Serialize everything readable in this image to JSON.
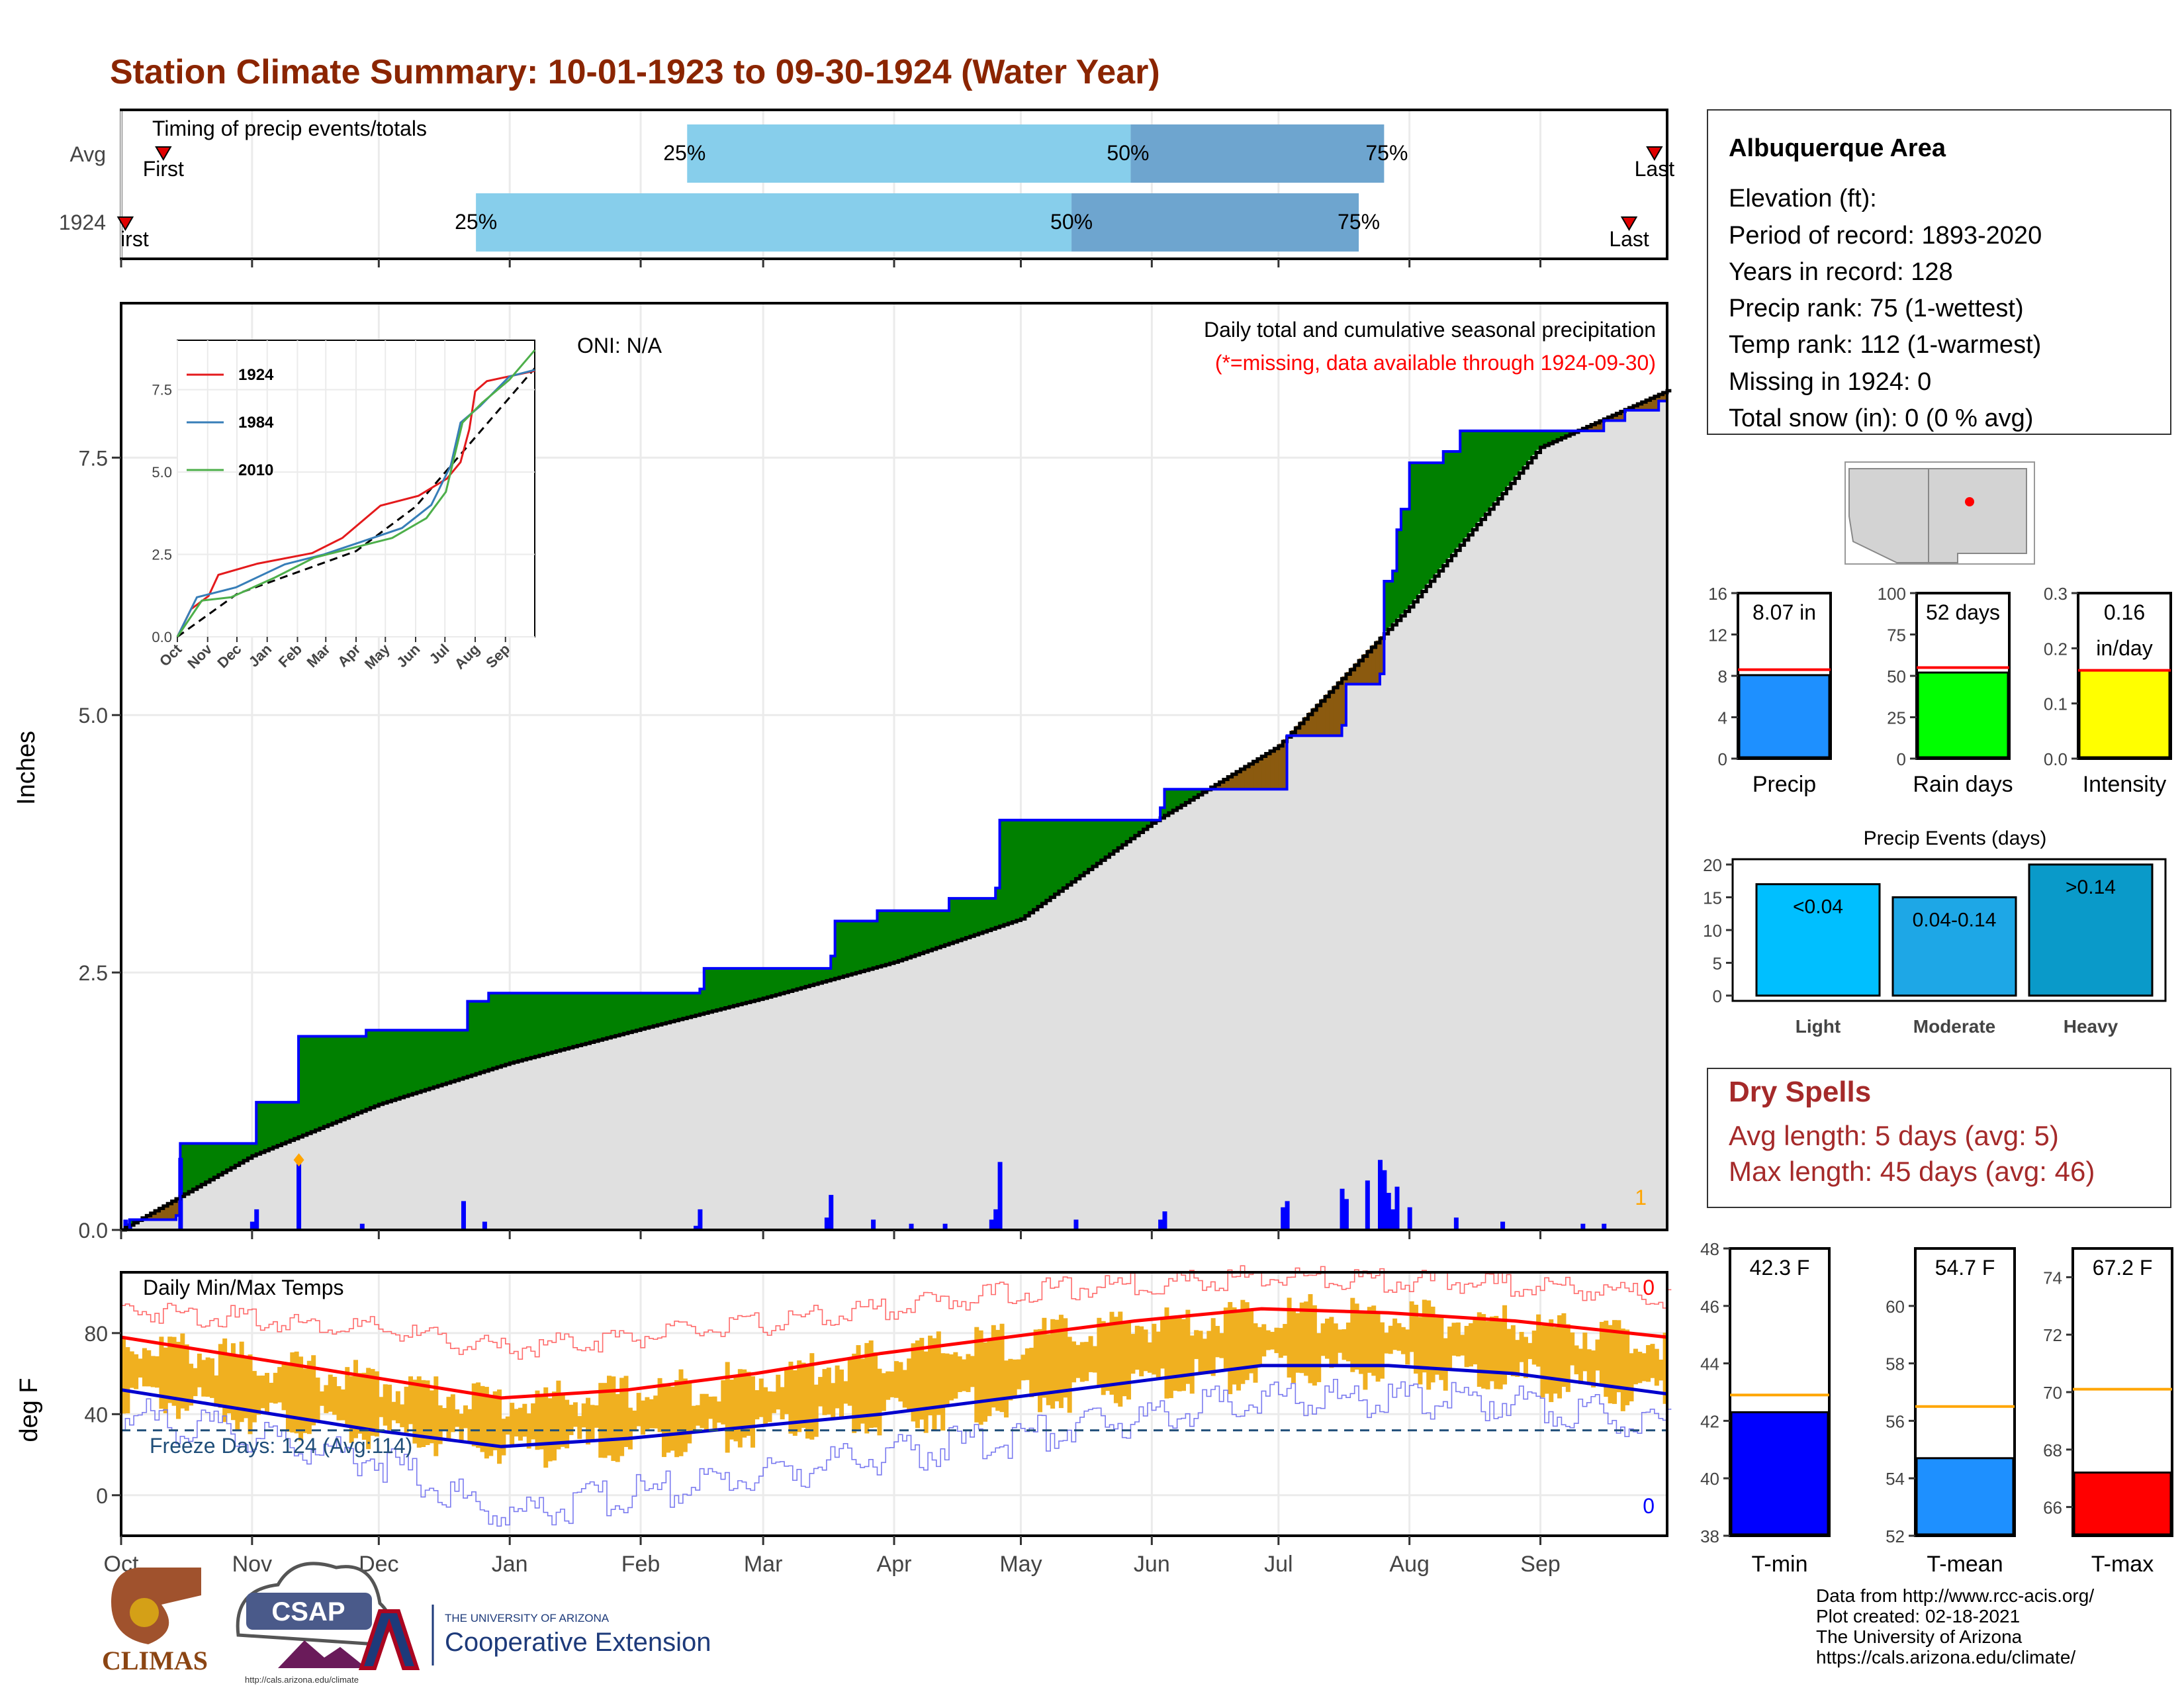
{
  "title": "Station Climate Summary: 10-01-1923 to 09-30-1924 (Water Year)",
  "colors": {
    "title": "#8b2500",
    "p25_50": "#87ceeb",
    "p50_75": "#6ea5cf",
    "cumulative_avg_fill": "#e0e0e0",
    "above_avg": "#008000",
    "below_avg": "#8b5a0f",
    "daily_bar": "#0000ff",
    "temp_bar": "#f0b020",
    "tmax_line": "#ff0000",
    "tmin_line": "#0000cd",
    "freeze_line": "#1f4e79",
    "dry_spells": "#a52a2a"
  },
  "timing": {
    "label": "Timing of precip events/totals",
    "rows": [
      "Avg",
      "1924"
    ],
    "first_label": "First",
    "first_label_clipped": "irst",
    "last_label": "Last",
    "avg": {
      "first_day": 10,
      "p25_day": 134,
      "p50_day": 239,
      "p75_day": 299,
      "last_day": 363
    },
    "year": {
      "first_day": 1,
      "p25_day": 84,
      "p50_day": 225,
      "p75_day": 293,
      "last_day": 357
    },
    "pct_labels": [
      "25%",
      "50%",
      "75%"
    ]
  },
  "chart_data": [
    {
      "type": "area",
      "id": "cumulative-precip",
      "ylabel": "Inches",
      "ylim": [
        0,
        9.0
      ],
      "yticks": [
        "0.0",
        "2.5",
        "5.0",
        "7.5"
      ],
      "yticks_values": [
        0,
        2.5,
        5.0,
        7.5
      ],
      "months": [
        "Oct",
        "Nov",
        "Dec",
        "Jan",
        "Feb",
        "Mar",
        "Apr",
        "May",
        "Jun",
        "Jul",
        "Aug",
        "Sep"
      ],
      "month_start_days": [
        0,
        31,
        61,
        92,
        123,
        152,
        183,
        213,
        244,
        274,
        305,
        336
      ],
      "days_in_year": 366,
      "subtitle": "Daily total and cumulative seasonal precipitation",
      "missing_note": "(*=missing, data available through 1924-09-30)",
      "oni": "ONI: N/A",
      "corner_count": "1",
      "avg_cumulative": [
        [
          0,
          0
        ],
        [
          31,
          0.72
        ],
        [
          61,
          1.22
        ],
        [
          92,
          1.62
        ],
        [
          123,
          1.95
        ],
        [
          152,
          2.25
        ],
        [
          183,
          2.6
        ],
        [
          213,
          3.02
        ],
        [
          244,
          3.95
        ],
        [
          274,
          4.7
        ],
        [
          305,
          6.05
        ],
        [
          336,
          7.6
        ],
        [
          366,
          8.15
        ]
      ],
      "year_cumulative": [
        [
          0,
          0
        ],
        [
          2,
          0.1
        ],
        [
          13,
          0.14
        ],
        [
          14,
          0.84
        ],
        [
          31,
          0.84
        ],
        [
          32,
          1.04
        ],
        [
          32,
          1.24
        ],
        [
          41,
          1.24
        ],
        [
          42,
          1.88
        ],
        [
          57,
          1.88
        ],
        [
          58,
          1.94
        ],
        [
          81,
          1.94
        ],
        [
          82,
          2.22
        ],
        [
          86,
          2.22
        ],
        [
          87,
          2.3
        ],
        [
          136,
          2.3
        ],
        [
          137,
          2.34
        ],
        [
          138,
          2.54
        ],
        [
          153,
          2.54
        ],
        [
          168,
          2.66
        ],
        [
          169,
          3.0
        ],
        [
          178,
          3.0
        ],
        [
          179,
          3.1
        ],
        [
          188,
          3.1
        ],
        [
          196,
          3.22
        ],
        [
          206,
          3.22
        ],
        [
          207,
          3.32
        ],
        [
          208,
          3.98
        ],
        [
          226,
          3.98
        ],
        [
          246,
          4.1
        ],
        [
          247,
          4.28
        ],
        [
          276,
          4.5
        ],
        [
          276,
          4.8
        ],
        [
          289,
          4.9
        ],
        [
          290,
          5.3
        ],
        [
          298,
          5.4
        ],
        [
          299,
          6.3
        ],
        [
          301,
          6.4
        ],
        [
          302,
          6.8
        ],
        [
          303,
          7.0
        ],
        [
          305,
          7.45
        ],
        [
          313,
          7.56
        ],
        [
          316,
          7.56
        ],
        [
          317,
          7.76
        ],
        [
          350,
          7.76
        ],
        [
          351,
          7.86
        ],
        [
          356,
          7.96
        ],
        [
          364,
          8.05
        ],
        [
          366,
          8.07
        ]
      ],
      "daily_precip": [
        [
          1,
          0.1
        ],
        [
          2,
          0.04
        ],
        [
          14,
          0.7
        ],
        [
          31,
          0.08
        ],
        [
          32,
          0.2
        ],
        [
          42,
          0.64
        ],
        [
          57,
          0.06
        ],
        [
          81,
          0.28
        ],
        [
          86,
          0.08
        ],
        [
          136,
          0.04
        ],
        [
          137,
          0.2
        ],
        [
          167,
          0.12
        ],
        [
          168,
          0.34
        ],
        [
          178,
          0.1
        ],
        [
          187,
          0.06
        ],
        [
          195,
          0.06
        ],
        [
          206,
          0.1
        ],
        [
          207,
          0.2
        ],
        [
          208,
          0.66
        ],
        [
          226,
          0.1
        ],
        [
          246,
          0.1
        ],
        [
          247,
          0.18
        ],
        [
          275,
          0.22
        ],
        [
          276,
          0.28
        ],
        [
          289,
          0.4
        ],
        [
          290,
          0.3
        ],
        [
          295,
          0.48
        ],
        [
          298,
          0.68
        ],
        [
          299,
          0.58
        ],
        [
          300,
          0.36
        ],
        [
          301,
          0.2
        ],
        [
          302,
          0.42
        ],
        [
          305,
          0.22
        ],
        [
          316,
          0.12
        ],
        [
          327,
          0.08
        ],
        [
          346,
          0.06
        ],
        [
          351,
          0.06
        ]
      ],
      "missing_marker_day": 42,
      "missing_marker_value": 0.68,
      "inset": {
        "type": "line",
        "ylim": [
          0,
          9.0
        ],
        "yticks": [
          "0.0",
          "2.5",
          "5.0",
          "7.5"
        ],
        "yticks_values": [
          0,
          2.5,
          5.0,
          7.5
        ],
        "months": [
          "Oct",
          "Nov",
          "Dec",
          "Jan",
          "Feb",
          "Mar",
          "Apr",
          "May",
          "Jun",
          "Jul",
          "Aug",
          "Sep"
        ],
        "series": [
          {
            "name": "1924",
            "color": "#e41a1c",
            "values": [
              [
                0,
                0
              ],
              [
                14,
                0.84
              ],
              [
                32,
                1.24
              ],
              [
                42,
                1.88
              ],
              [
                82,
                2.22
              ],
              [
                138,
                2.54
              ],
              [
                169,
                3.0
              ],
              [
                208,
                3.98
              ],
              [
                247,
                4.28
              ],
              [
                276,
                4.8
              ],
              [
                290,
                5.3
              ],
              [
                299,
                6.3
              ],
              [
                305,
                7.45
              ],
              [
                317,
                7.76
              ],
              [
                366,
                8.07
              ]
            ]
          },
          {
            "name": "1984",
            "color": "#377eb8",
            "values": [
              [
                0,
                0
              ],
              [
                20,
                1.2
              ],
              [
                60,
                1.5
              ],
              [
                110,
                2.2
              ],
              [
                150,
                2.5
              ],
              [
                190,
                2.9
              ],
              [
                230,
                3.3
              ],
              [
                260,
                4.0
              ],
              [
                280,
                5.2
              ],
              [
                290,
                6.5
              ],
              [
                310,
                7.0
              ],
              [
                340,
                7.9
              ],
              [
                366,
                8.1
              ]
            ]
          },
          {
            "name": "2010",
            "color": "#4daf4a",
            "values": [
              [
                0,
                0
              ],
              [
                25,
                1.1
              ],
              [
                55,
                1.2
              ],
              [
                100,
                1.8
              ],
              [
                140,
                2.4
              ],
              [
                180,
                2.7
              ],
              [
                220,
                3.0
              ],
              [
                255,
                3.6
              ],
              [
                275,
                4.4
              ],
              [
                292,
                6.5
              ],
              [
                312,
                7.1
              ],
              [
                340,
                7.8
              ],
              [
                366,
                8.7
              ]
            ]
          }
        ],
        "avg_dashed": [
          [
            0,
            0
          ],
          [
            61,
            1.3
          ],
          [
            122,
            1.95
          ],
          [
            183,
            2.6
          ],
          [
            244,
            3.95
          ],
          [
            305,
            6.05
          ],
          [
            366,
            8.15
          ]
        ]
      }
    },
    {
      "type": "line",
      "id": "daily-temps",
      "label": "Daily Min/Max Temps",
      "ylabel": "deg F",
      "ylim": [
        -20,
        110
      ],
      "yticks": [
        "0",
        "40",
        "80"
      ],
      "yticks_values": [
        0,
        40,
        80
      ],
      "months": [
        "Oct",
        "Nov",
        "Dec",
        "Jan",
        "Feb",
        "Mar",
        "Apr",
        "May",
        "Jun",
        "Jul",
        "Aug",
        "Sep"
      ],
      "freeze_label": "Freeze Days: 124 (Avg:114)",
      "freeze_value": 32,
      "count_top": "0",
      "count_bottom": "0",
      "normal_max": [
        [
          0,
          78
        ],
        [
          30,
          68
        ],
        [
          60,
          58
        ],
        [
          90,
          48
        ],
        [
          120,
          52
        ],
        [
          150,
          60
        ],
        [
          180,
          70
        ],
        [
          210,
          78
        ],
        [
          240,
          86
        ],
        [
          270,
          92
        ],
        [
          300,
          90
        ],
        [
          330,
          86
        ],
        [
          366,
          78
        ]
      ],
      "normal_min": [
        [
          0,
          52
        ],
        [
          30,
          42
        ],
        [
          60,
          32
        ],
        [
          90,
          24
        ],
        [
          120,
          28
        ],
        [
          150,
          34
        ],
        [
          180,
          40
        ],
        [
          210,
          48
        ],
        [
          240,
          56
        ],
        [
          270,
          64
        ],
        [
          300,
          64
        ],
        [
          330,
          60
        ],
        [
          366,
          50
        ]
      ],
      "record_max": [
        [
          0,
          92
        ],
        [
          60,
          82
        ],
        [
          90,
          72
        ],
        [
          150,
          84
        ],
        [
          210,
          100
        ],
        [
          270,
          108
        ],
        [
          330,
          104
        ],
        [
          366,
          98
        ]
      ],
      "record_min": [
        [
          0,
          40
        ],
        [
          60,
          18
        ],
        [
          90,
          -10
        ],
        [
          150,
          10
        ],
        [
          210,
          28
        ],
        [
          270,
          48
        ],
        [
          330,
          46
        ],
        [
          366,
          36
        ]
      ]
    },
    {
      "type": "bar",
      "id": "precip-summary",
      "categories": [
        "Precip",
        "Rain days",
        "Intensity"
      ],
      "values": [
        8.07,
        52,
        0.16
      ],
      "averages": [
        8.6,
        55,
        0.16
      ],
      "value_labels": [
        "8.07 in",
        "52 days",
        "0.16"
      ],
      "value_label_extra": [
        "",
        "",
        "in/day"
      ],
      "ylims": [
        [
          0,
          16
        ],
        [
          0,
          100
        ],
        [
          0,
          0.3
        ]
      ],
      "yticks": [
        [
          "0",
          "4",
          "8",
          "12",
          "16"
        ],
        [
          "0",
          "25",
          "50",
          "75",
          "100"
        ],
        [
          "0.0",
          "0.1",
          "0.2",
          "0.3"
        ]
      ],
      "bar_colors": [
        "#1e90ff",
        "#00ff00",
        "#ffff00"
      ]
    },
    {
      "type": "bar",
      "id": "precip-events",
      "title": "Precip Events (days)",
      "categories": [
        "Light",
        "Moderate",
        "Heavy"
      ],
      "values": [
        17,
        15,
        20
      ],
      "value_labels": [
        "<0.04",
        "0.04-0.14",
        ">0.14"
      ],
      "ylim": [
        0,
        20
      ],
      "yticks": [
        "0",
        "5",
        "10",
        "15",
        "20"
      ],
      "bar_colors": [
        "#00bfff",
        "#1ea7e6",
        "#0a9ac9"
      ]
    },
    {
      "type": "bar",
      "id": "temp-summary",
      "categories": [
        "T-min",
        "T-mean",
        "T-max"
      ],
      "values": [
        42.3,
        54.7,
        67.2
      ],
      "averages": [
        42.9,
        56.5,
        70.1
      ],
      "value_labels": [
        "42.3 F",
        "54.7 F",
        "67.2 F"
      ],
      "ylims": [
        [
          38,
          48
        ],
        [
          52,
          62
        ],
        [
          65,
          75
        ]
      ],
      "yticks": [
        [
          "38",
          "40",
          "42",
          "44",
          "46",
          "48"
        ],
        [
          "52",
          "54",
          "56",
          "58",
          "60"
        ],
        [
          "66",
          "68",
          "70",
          "72",
          "74"
        ]
      ],
      "bar_colors": [
        "#0000ff",
        "#1e90ff",
        "#ff0000"
      ]
    }
  ],
  "station": {
    "name": "Albuquerque Area",
    "lines": [
      "Elevation (ft):",
      "Period of record: 1893-2020",
      "Years in record: 128",
      "Precip rank: 75 (1-wettest)",
      "Temp rank: 112 (1-warmest)",
      "Missing in 1924: 0",
      "Total snow (in): 0 (0 % avg)"
    ]
  },
  "dry_spells": {
    "title": "Dry Spells",
    "avg_line": "Avg length: 5 days (avg: 5)",
    "max_line": "Max length: 45 days (avg: 46)"
  },
  "footer": {
    "climas": "CLIMAS",
    "csap": "CSAP",
    "csap_url": "http://cals.arizona.edu/climate",
    "ua_small": "THE UNIVERSITY OF ARIZONA",
    "ua_big": "Cooperative Extension",
    "lines": [
      "Data from http://www.rcc-acis.org/",
      "Plot created: 02-18-2021",
      "The University of Arizona",
      "https://cals.arizona.edu/climate/"
    ]
  }
}
